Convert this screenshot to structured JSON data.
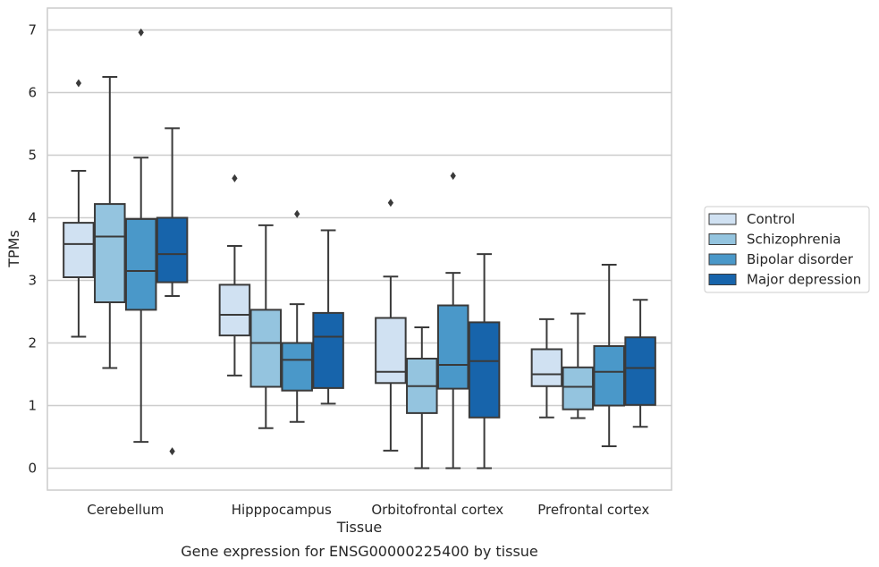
{
  "chart_data": {
    "type": "boxplot",
    "title": "Gene expression for ENSG00000225400 by tissue",
    "xlabel": "Tissue",
    "ylabel": "TPMs",
    "ylim": [
      -0.35,
      7.35
    ],
    "yticks": [
      0,
      1,
      2,
      3,
      4,
      5,
      6,
      7
    ],
    "grid": "horizontal",
    "legend_position": "right",
    "categories": [
      "Cerebellum",
      "Hipppocampus",
      "Orbitofrontal cortex",
      "Prefrontal cortex"
    ],
    "series": [
      {
        "name": "Control",
        "color": "#d0e1f2",
        "boxes": [
          {
            "whislo": 2.1,
            "q1": 3.05,
            "med": 3.58,
            "q3": 3.92,
            "whishi": 4.75,
            "fliers": [
              6.15
            ]
          },
          {
            "whislo": 1.48,
            "q1": 2.12,
            "med": 2.45,
            "q3": 2.93,
            "whishi": 3.55,
            "fliers": [
              4.63
            ]
          },
          {
            "whislo": 0.28,
            "q1": 1.36,
            "med": 1.54,
            "q3": 2.4,
            "whishi": 3.06,
            "fliers": [
              4.24
            ]
          },
          {
            "whislo": 0.81,
            "q1": 1.31,
            "med": 1.5,
            "q3": 1.9,
            "whishi": 2.38,
            "fliers": []
          }
        ]
      },
      {
        "name": "Schizophrenia",
        "color": "#94c4df",
        "boxes": [
          {
            "whislo": 1.6,
            "q1": 2.65,
            "med": 3.7,
            "q3": 4.22,
            "whishi": 6.25,
            "fliers": []
          },
          {
            "whislo": 0.64,
            "q1": 1.3,
            "med": 2.0,
            "q3": 2.53,
            "whishi": 3.88,
            "fliers": []
          },
          {
            "whislo": 0.0,
            "q1": 0.88,
            "med": 1.31,
            "q3": 1.75,
            "whishi": 2.25,
            "fliers": []
          },
          {
            "whislo": 0.8,
            "q1": 0.94,
            "med": 1.3,
            "q3": 1.61,
            "whishi": 2.47,
            "fliers": []
          }
        ]
      },
      {
        "name": "Bipolar disorder",
        "color": "#4a98c9",
        "boxes": [
          {
            "whislo": 0.42,
            "q1": 2.53,
            "med": 3.15,
            "q3": 3.98,
            "whishi": 4.96,
            "fliers": [
              6.96
            ]
          },
          {
            "whislo": 0.74,
            "q1": 1.24,
            "med": 1.73,
            "q3": 2.0,
            "whishi": 2.62,
            "fliers": [
              4.06
            ]
          },
          {
            "whislo": 0.0,
            "q1": 1.27,
            "med": 1.65,
            "q3": 2.6,
            "whishi": 3.12,
            "fliers": [
              4.67
            ]
          },
          {
            "whislo": 0.35,
            "q1": 1.0,
            "med": 1.54,
            "q3": 1.95,
            "whishi": 3.25,
            "fliers": []
          }
        ]
      },
      {
        "name": "Major depression",
        "color": "#1764ab",
        "boxes": [
          {
            "whislo": 2.75,
            "q1": 2.97,
            "med": 3.42,
            "q3": 4.0,
            "whishi": 5.43,
            "fliers": [
              0.27
            ]
          },
          {
            "whislo": 1.03,
            "q1": 1.28,
            "med": 2.1,
            "q3": 2.48,
            "whishi": 3.8,
            "fliers": []
          },
          {
            "whislo": 0.0,
            "q1": 0.81,
            "med": 1.71,
            "q3": 2.33,
            "whishi": 3.42,
            "fliers": []
          },
          {
            "whislo": 0.66,
            "q1": 1.01,
            "med": 1.6,
            "q3": 2.09,
            "whishi": 2.69,
            "fliers": []
          }
        ]
      }
    ]
  }
}
